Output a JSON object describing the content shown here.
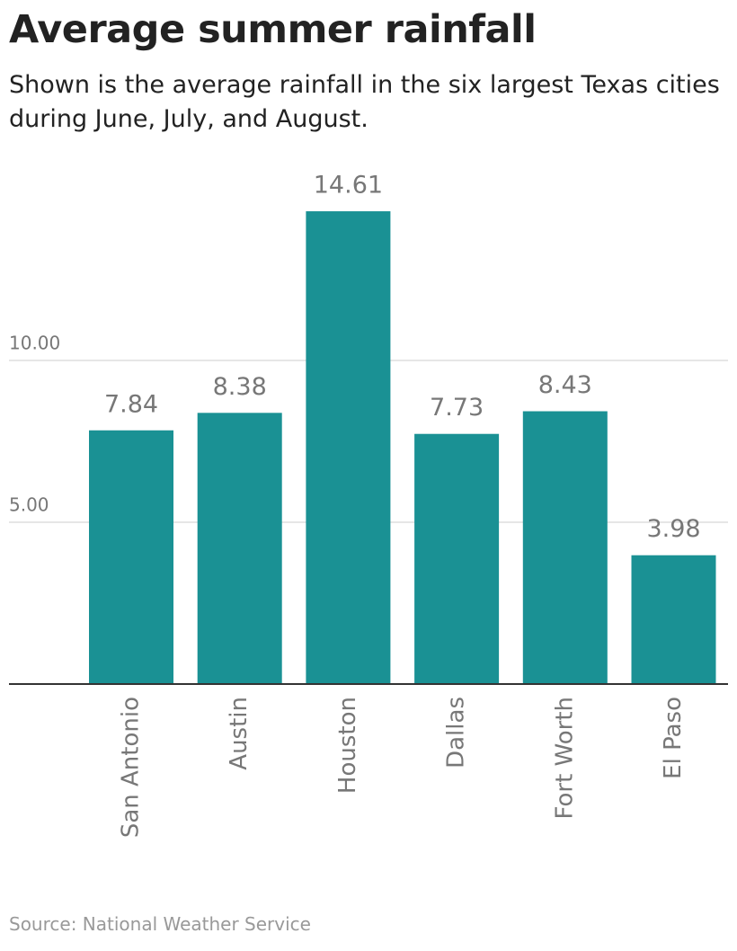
{
  "chart_data": {
    "type": "bar",
    "title": "Average summer rainfall",
    "subtitle": "Shown is the average rainfall in the six largest Texas cities during June, July, and August.",
    "source": "Source: National Weather Service",
    "categories": [
      "San Antonio",
      "Austin",
      "Houston",
      "Dallas",
      "Fort Worth",
      "El Paso"
    ],
    "values": [
      7.84,
      8.38,
      14.61,
      7.73,
      8.43,
      3.98
    ],
    "color": "#1a9194",
    "ylim": [
      0,
      15
    ],
    "yticks": [
      {
        "value": 5,
        "label": "5.00"
      },
      {
        "value": 10,
        "label": "10.00"
      }
    ],
    "grid": true
  }
}
